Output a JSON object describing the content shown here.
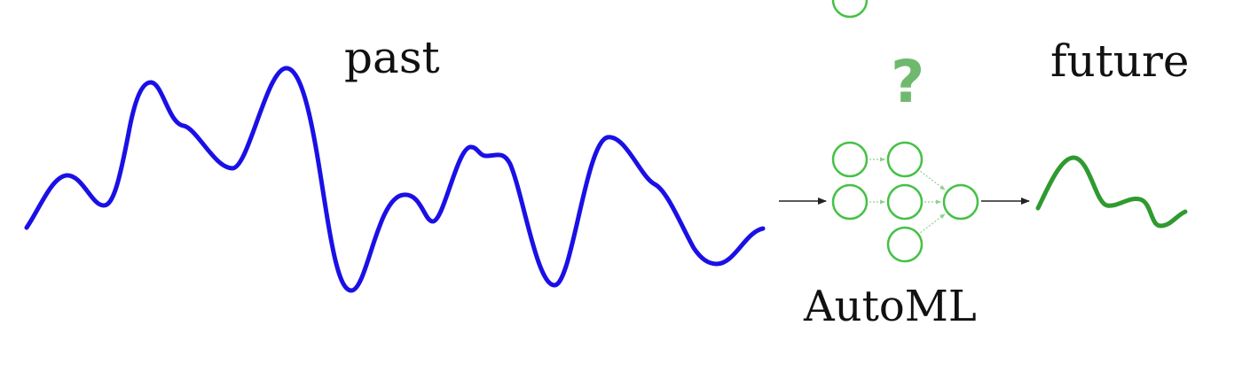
{
  "labels": {
    "past": "past",
    "future": "future",
    "model": "AutoML",
    "unknown": "?"
  },
  "colors": {
    "past_series": "#1a10e6",
    "future_series": "#2f9a2f",
    "network_nodes": "#45c145",
    "network_edges": "#8fd08f",
    "question_mark": "#6fb96f",
    "arrows": "#222222",
    "text": "#111111"
  },
  "network": {
    "layers": [
      3,
      3,
      1
    ]
  }
}
